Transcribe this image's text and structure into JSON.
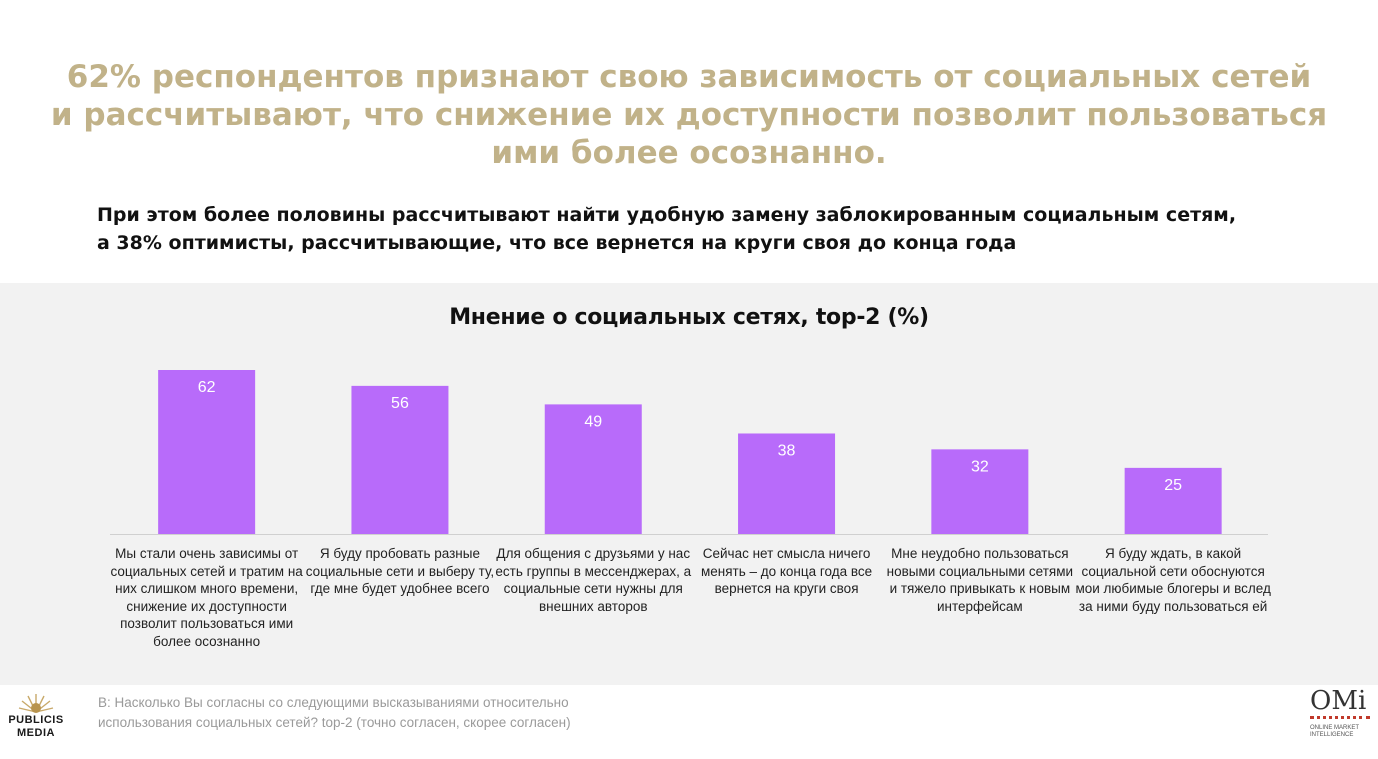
{
  "headline": {
    "lines": [
      "62% респондентов признают свою зависимость от социальных сетей",
      "и рассчитывают, что снижение их доступности позволит пользоваться",
      "ими более осознанно."
    ]
  },
  "subhead": {
    "lines": [
      "При этом более половины рассчитывают найти удобную замену заблокированным социальным сетям,",
      "а 38% оптимисты, рассчитывающие, что все вернется на круги своя до конца года"
    ]
  },
  "chart_data": {
    "type": "bar",
    "title": "Мнение о социальных сетях, top-2 (%)",
    "categories": [
      "Мы стали очень зависимы от социальных сетей и тратим на них слишком много времени, снижение их доступности позволит пользоваться ими более осознанно",
      "Я буду пробовать разные социальные сети и выберу ту, где мне будет удобнее всего",
      "Для общения с друзьями у нас есть группы в мессенджерах, а социальные сети нужны для внешних авторов",
      "Сейчас нет смысла ничего менять – до конца года все вернется на круги своя",
      "Мне неудобно пользоваться новыми социальными сетями и тяжело привыкать к новым интерфейсам",
      "Я буду ждать, в какой социальной сети обоснуются мои любимые блогеры и вслед за ними буду пользоваться ей"
    ],
    "values": [
      62,
      56,
      49,
      38,
      32,
      25
    ],
    "data_labels": [
      "62",
      "56",
      "49",
      "38",
      "32",
      "25"
    ],
    "bar_color": "#b86bfa",
    "label_color": "#ffffff",
    "grid": false,
    "legend": "none"
  },
  "footer": {
    "question": "B:  Насколько Вы согласны со следующими высказываниями относительно использования социальных сетей? top-2 (точно согласен, скорее согласен)",
    "logo_left": "PUBLICIS MEDIA",
    "logo_right_mark": "OMi",
    "logo_right_sub": "Online Market Intelligence"
  },
  "colors": {
    "headline": "#c1b289",
    "panel_background": "#f2f2f2"
  }
}
